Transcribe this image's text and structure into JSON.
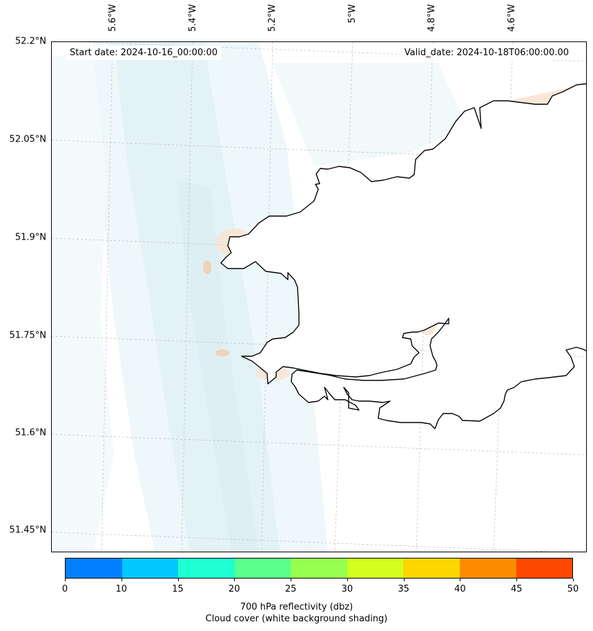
{
  "map": {
    "start_date": "Start date: 2024-10-16_00:00:00",
    "valid_date": "Valid_date: 2024-10-18T06:00:00.00",
    "lat_labels": [
      "52.2°N",
      "52.05°N",
      "51.9°N",
      "51.75°N",
      "51.6°N",
      "51.45°N"
    ],
    "lon_labels": [
      "5.6°W",
      "5.4°W",
      "5.2°W",
      "5°W",
      "4.8°W",
      "4.6°W"
    ],
    "coastline_color": "#000000",
    "sea_shading_color": "#d6ebf2",
    "land_warm_color": "#f6c9a8"
  },
  "colorbar": {
    "ticks": [
      "0",
      "10",
      "15",
      "20",
      "25",
      "30",
      "35",
      "40",
      "45",
      "50"
    ],
    "colors": [
      "#0080ff",
      "#00c8ff",
      "#1effd2",
      "#5aff8c",
      "#96ff50",
      "#d2ff1e",
      "#ffd700",
      "#ff8c00",
      "#ff4800"
    ],
    "label_line1": "700 hPa reflectivity (dbz)",
    "label_line2": "Cloud cover (white background shading)"
  }
}
